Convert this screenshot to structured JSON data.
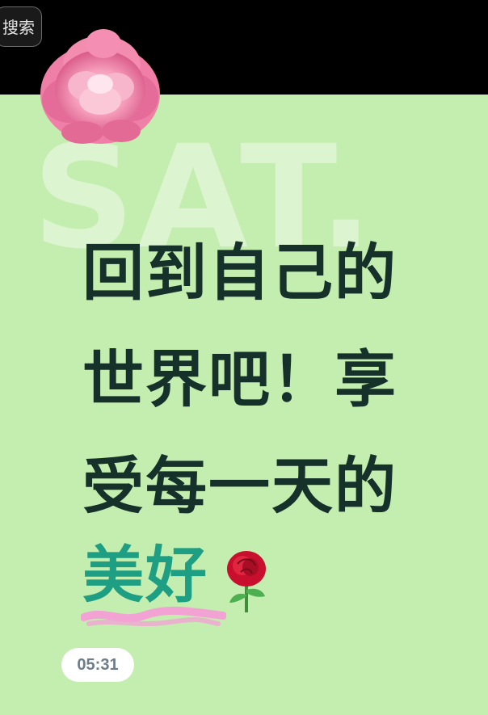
{
  "topbar": {
    "search_label": "搜索"
  },
  "watermark": {
    "text": "SAT."
  },
  "headline": {
    "line1": "回到自己的",
    "line2": "世界吧！享",
    "line3": "受每一天的"
  },
  "highlight": {
    "text": "美好"
  },
  "decorations": {
    "flower_icon": "pink-peony-icon",
    "rose_icon": "red-rose-emoji-icon"
  },
  "time_badge": {
    "text": "05:31"
  },
  "colors": {
    "background": "#c4eeaf",
    "topbar": "#000000",
    "headline": "#16302a",
    "highlight": "#1e9e82",
    "underline": "#f2a3d4"
  }
}
